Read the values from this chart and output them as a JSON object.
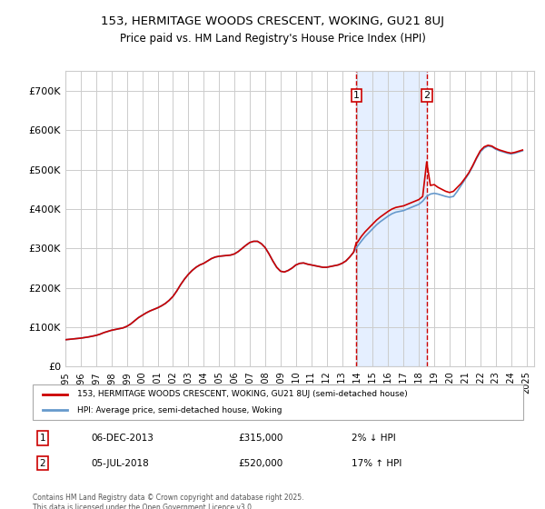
{
  "title": "153, HERMITAGE WOODS CRESCENT, WOKING, GU21 8UJ",
  "subtitle": "Price paid vs. HM Land Registry's House Price Index (HPI)",
  "legend_line1": "153, HERMITAGE WOODS CRESCENT, WOKING, GU21 8UJ (semi-detached house)",
  "legend_line2": "HPI: Average price, semi-detached house, Woking",
  "sale1_label": "1",
  "sale1_date": "06-DEC-2013",
  "sale1_price": "£315,000",
  "sale1_detail": "2% ↓ HPI",
  "sale2_label": "2",
  "sale2_date": "05-JUL-2018",
  "sale2_price": "£520,000",
  "sale2_detail": "17% ↑ HPI",
  "footer": "Contains HM Land Registry data © Crown copyright and database right 2025.\nThis data is licensed under the Open Government Licence v3.0.",
  "hpi_line_color": "#6699cc",
  "price_line_color": "#cc0000",
  "sale1_vline_color": "#cc0000",
  "sale2_vline_color": "#cc0000",
  "shade_color": "#cce0ff",
  "ylim": [
    0,
    750000
  ],
  "yticks": [
    0,
    100000,
    200000,
    300000,
    400000,
    500000,
    600000,
    700000
  ],
  "ytick_labels": [
    "£0",
    "£100K",
    "£200K",
    "£300K",
    "£400K",
    "£500K",
    "£600K",
    "£700K"
  ],
  "xstart": 1995.0,
  "xend": 2025.5,
  "sale1_x": 2013.93,
  "sale2_x": 2018.51,
  "hpi_years": [
    1995.0,
    1995.25,
    1995.5,
    1995.75,
    1996.0,
    1996.25,
    1996.5,
    1996.75,
    1997.0,
    1997.25,
    1997.5,
    1997.75,
    1998.0,
    1998.25,
    1998.5,
    1998.75,
    1999.0,
    1999.25,
    1999.5,
    1999.75,
    2000.0,
    2000.25,
    2000.5,
    2000.75,
    2001.0,
    2001.25,
    2001.5,
    2001.75,
    2002.0,
    2002.25,
    2002.5,
    2002.75,
    2003.0,
    2003.25,
    2003.5,
    2003.75,
    2004.0,
    2004.25,
    2004.5,
    2004.75,
    2005.0,
    2005.25,
    2005.5,
    2005.75,
    2006.0,
    2006.25,
    2006.5,
    2006.75,
    2007.0,
    2007.25,
    2007.5,
    2007.75,
    2008.0,
    2008.25,
    2008.5,
    2008.75,
    2009.0,
    2009.25,
    2009.5,
    2009.75,
    2010.0,
    2010.25,
    2010.5,
    2010.75,
    2011.0,
    2011.25,
    2011.5,
    2011.75,
    2012.0,
    2012.25,
    2012.5,
    2012.75,
    2013.0,
    2013.25,
    2013.5,
    2013.75,
    2014.0,
    2014.25,
    2014.5,
    2014.75,
    2015.0,
    2015.25,
    2015.5,
    2015.75,
    2016.0,
    2016.25,
    2016.5,
    2016.75,
    2017.0,
    2017.25,
    2017.5,
    2017.75,
    2018.0,
    2018.25,
    2018.5,
    2018.75,
    2019.0,
    2019.25,
    2019.5,
    2019.75,
    2020.0,
    2020.25,
    2020.5,
    2020.75,
    2021.0,
    2021.25,
    2021.5,
    2021.75,
    2022.0,
    2022.25,
    2022.5,
    2022.75,
    2023.0,
    2023.25,
    2023.5,
    2023.75,
    2024.0,
    2024.25,
    2024.5,
    2024.75
  ],
  "hpi_values": [
    68000,
    69000,
    70000,
    71000,
    72000,
    73500,
    75000,
    77000,
    79000,
    82000,
    86000,
    89000,
    92000,
    94000,
    96000,
    98000,
    102000,
    108000,
    116000,
    124000,
    130000,
    136000,
    141000,
    145000,
    149000,
    154000,
    160000,
    168000,
    178000,
    192000,
    208000,
    222000,
    234000,
    244000,
    252000,
    258000,
    262000,
    268000,
    274000,
    278000,
    280000,
    281000,
    282000,
    283000,
    286000,
    292000,
    300000,
    308000,
    315000,
    318000,
    318000,
    312000,
    302000,
    286000,
    268000,
    252000,
    242000,
    240000,
    244000,
    250000,
    258000,
    262000,
    263000,
    260000,
    258000,
    256000,
    254000,
    252000,
    252000,
    254000,
    256000,
    258000,
    262000,
    268000,
    278000,
    290000,
    305000,
    318000,
    330000,
    340000,
    350000,
    360000,
    368000,
    375000,
    382000,
    388000,
    392000,
    394000,
    396000,
    400000,
    404000,
    408000,
    412000,
    420000,
    432000,
    438000,
    440000,
    438000,
    435000,
    432000,
    430000,
    432000,
    445000,
    460000,
    475000,
    490000,
    508000,
    528000,
    545000,
    555000,
    560000,
    558000,
    552000,
    548000,
    545000,
    542000,
    540000,
    542000,
    545000,
    548000
  ],
  "price_years": [
    1995.0,
    1995.25,
    1995.5,
    1995.75,
    1996.0,
    1996.25,
    1996.5,
    1996.75,
    1997.0,
    1997.25,
    1997.5,
    1997.75,
    1998.0,
    1998.25,
    1998.5,
    1998.75,
    1999.0,
    1999.25,
    1999.5,
    1999.75,
    2000.0,
    2000.25,
    2000.5,
    2000.75,
    2001.0,
    2001.25,
    2001.5,
    2001.75,
    2002.0,
    2002.25,
    2002.5,
    2002.75,
    2003.0,
    2003.25,
    2003.5,
    2003.75,
    2004.0,
    2004.25,
    2004.5,
    2004.75,
    2005.0,
    2005.25,
    2005.5,
    2005.75,
    2006.0,
    2006.25,
    2006.5,
    2006.75,
    2007.0,
    2007.25,
    2007.5,
    2007.75,
    2008.0,
    2008.25,
    2008.5,
    2008.75,
    2009.0,
    2009.25,
    2009.5,
    2009.75,
    2010.0,
    2010.25,
    2010.5,
    2010.75,
    2011.0,
    2011.25,
    2011.5,
    2011.75,
    2012.0,
    2012.25,
    2012.5,
    2012.75,
    2013.0,
    2013.25,
    2013.5,
    2013.75,
    2013.93,
    2014.0,
    2014.25,
    2014.5,
    2014.75,
    2015.0,
    2015.25,
    2015.5,
    2015.75,
    2016.0,
    2016.25,
    2016.5,
    2016.75,
    2017.0,
    2017.25,
    2017.5,
    2017.75,
    2018.0,
    2018.25,
    2018.51,
    2018.75,
    2019.0,
    2019.25,
    2019.5,
    2019.75,
    2020.0,
    2020.25,
    2020.5,
    2020.75,
    2021.0,
    2021.25,
    2021.5,
    2021.75,
    2022.0,
    2022.25,
    2022.5,
    2022.75,
    2023.0,
    2023.25,
    2023.5,
    2023.75,
    2024.0,
    2024.25,
    2024.5,
    2024.75
  ],
  "price_values": [
    68000,
    69000,
    70000,
    71000,
    72000,
    73500,
    75000,
    77000,
    79000,
    82000,
    86000,
    89000,
    92000,
    94000,
    96000,
    98000,
    102000,
    108000,
    116000,
    124000,
    130000,
    136000,
    141000,
    145000,
    149000,
    154000,
    160000,
    168000,
    178000,
    192000,
    208000,
    222000,
    234000,
    244000,
    252000,
    258000,
    262000,
    268000,
    274000,
    278000,
    280000,
    281000,
    282000,
    283000,
    286000,
    292000,
    300000,
    308000,
    315000,
    318000,
    318000,
    312000,
    302000,
    286000,
    268000,
    252000,
    242000,
    240000,
    244000,
    250000,
    258000,
    262000,
    263000,
    260000,
    258000,
    256000,
    254000,
    252000,
    252000,
    254000,
    256000,
    258000,
    262000,
    268000,
    278000,
    290000,
    315000,
    315000,
    330000,
    342000,
    352000,
    362000,
    372000,
    380000,
    387000,
    394000,
    400000,
    404000,
    406000,
    408000,
    412000,
    416000,
    420000,
    424000,
    432000,
    520000,
    460000,
    462000,
    455000,
    450000,
    445000,
    442000,
    445000,
    455000,
    465000,
    478000,
    492000,
    510000,
    530000,
    548000,
    558000,
    562000,
    560000,
    554000,
    550000,
    547000,
    544000,
    542000,
    544000,
    547000,
    550000
  ]
}
